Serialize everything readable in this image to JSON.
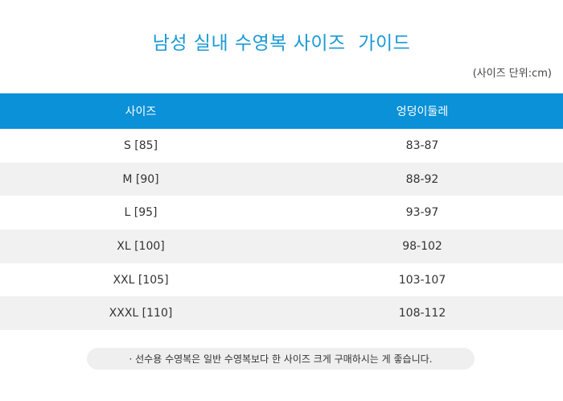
{
  "page": {
    "title": "남성 실내 수영복 사이즈  가이드",
    "unit_note": "(사이즈 단위:cm)"
  },
  "table": {
    "headers": [
      "사이즈",
      "엉덩이둘레"
    ],
    "rows": [
      [
        "S [85]",
        "83-87"
      ],
      [
        "M [90]",
        "88-92"
      ],
      [
        "L [95]",
        "93-97"
      ],
      [
        "XL [100]",
        "98-102"
      ],
      [
        "XXL [105]",
        "103-107"
      ],
      [
        "XXXL [110]",
        "108-112"
      ]
    ]
  },
  "footnote": "· 선수용 수영복은 일반 수영복보다 한 사이즈 크게 구매하시는 게 좋습니다.",
  "colors": {
    "accent": "#0a91d8",
    "title": "#1a9ad6",
    "row_alt": "#f1f1f1"
  }
}
